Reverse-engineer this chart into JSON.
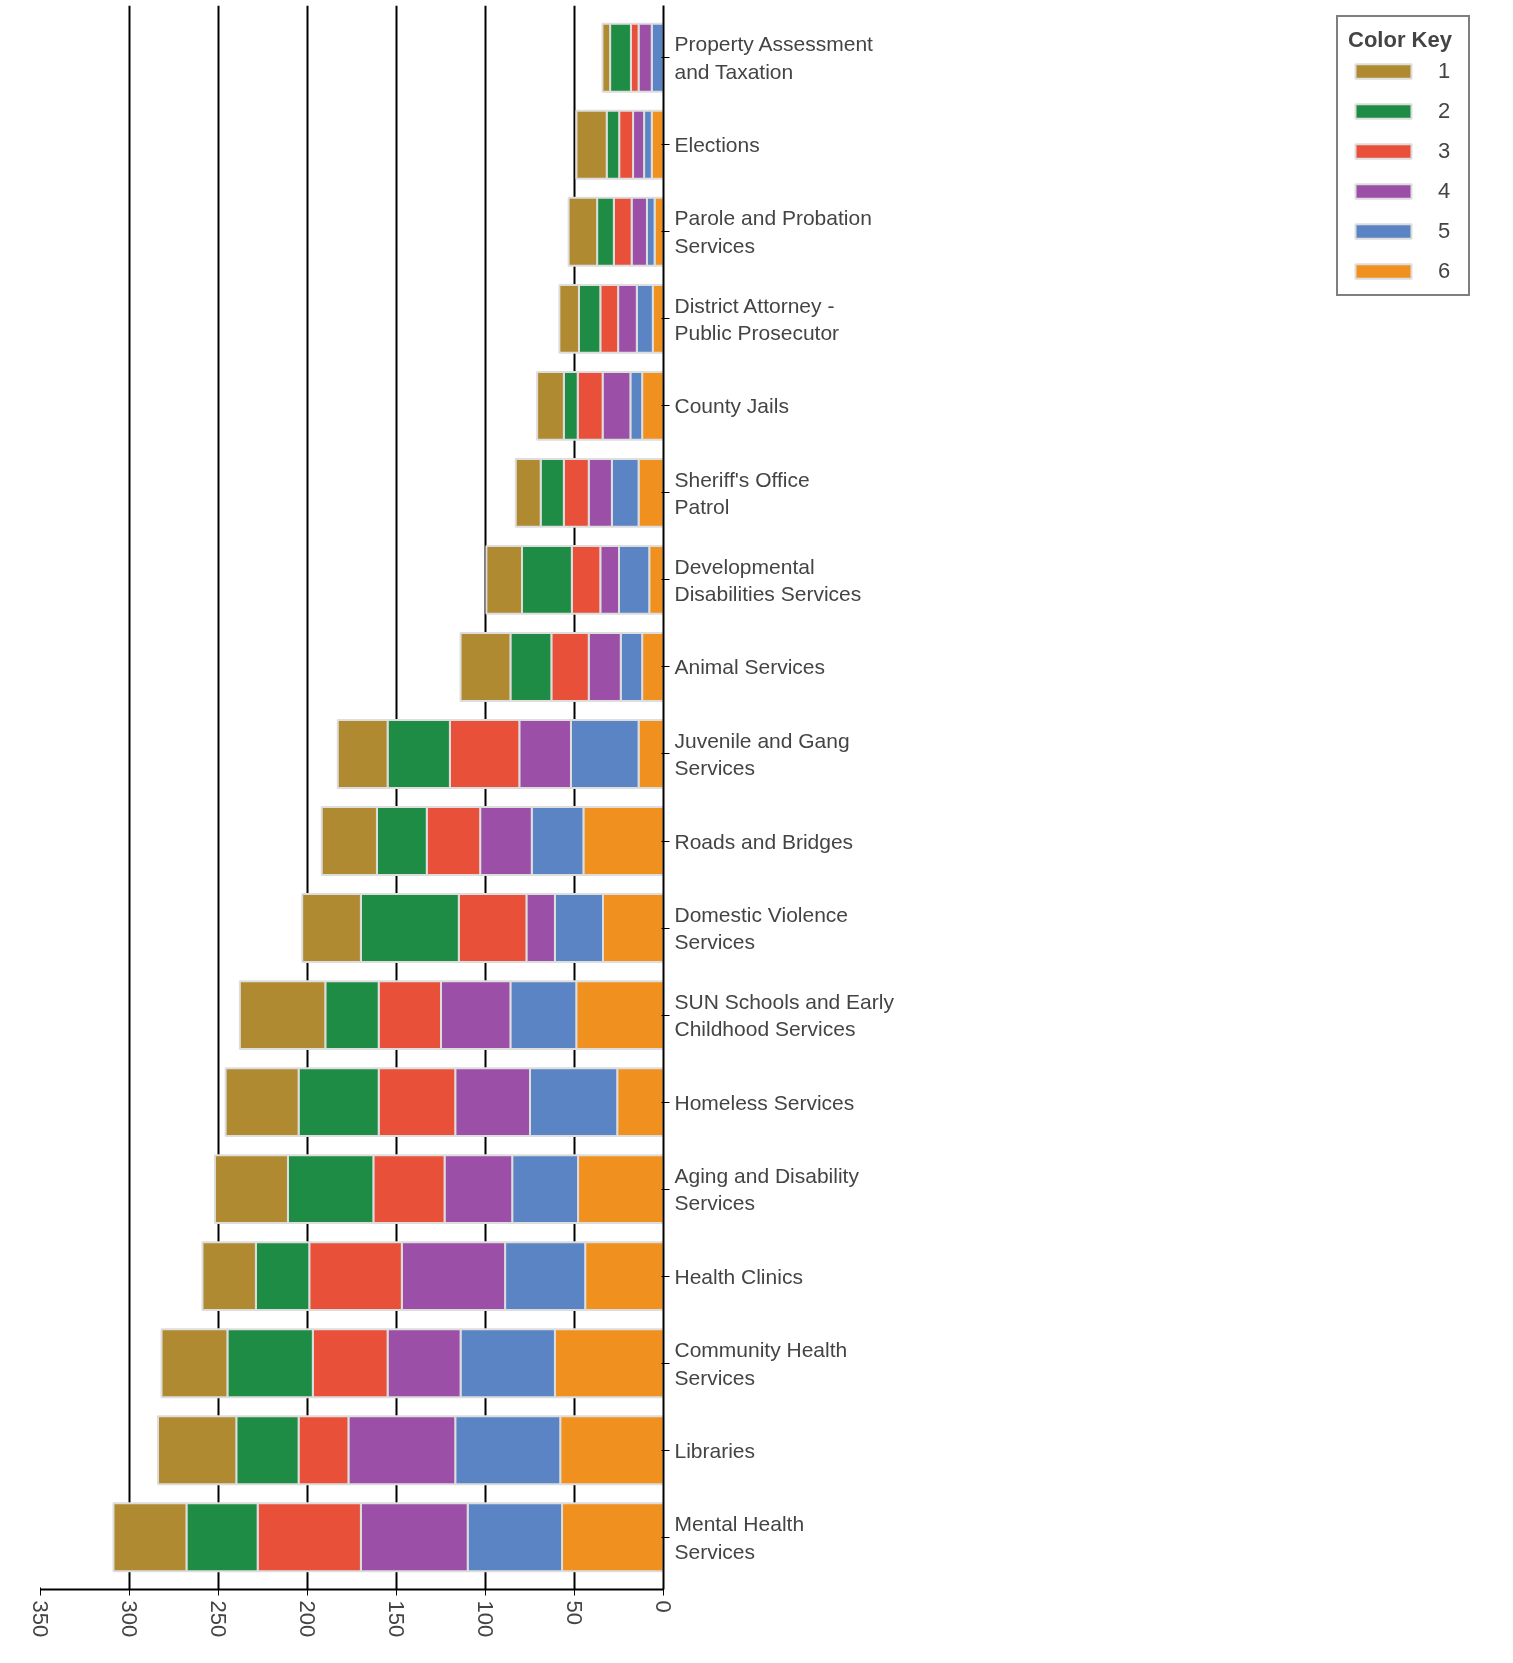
{
  "chart_data": {
    "type": "bar",
    "orientation": "horizontal",
    "stacked": true,
    "categories": [
      "Property Assessment and Taxation",
      "Elections",
      "Parole and Probation Services",
      "District Attorney - Public Prosecutor",
      "County Jails",
      "Sheriff's Office Patrol",
      "Developmental Disabilities Services",
      "Animal Services",
      "Juvenile and Gang Services",
      "Roads and Bridges",
      "Domestic Violence Services",
      "SUN Schools and Early Childhood Services",
      "Homeless Services",
      "Aging and Disability Services",
      "Health Clinics",
      "Community Health Services",
      "Libraries",
      "Mental Health Services"
    ],
    "series": [
      {
        "name": "6",
        "color": "#f0901e",
        "values": [
          null,
          6.6,
          5,
          6,
          12,
          14,
          8,
          12,
          14,
          45,
          34,
          49,
          26,
          48,
          44,
          61,
          58,
          57
        ]
      },
      {
        "name": "5",
        "color": "#5b84c4",
        "values": [
          6.6,
          4.3,
          4.3,
          9,
          6.6,
          15,
          17,
          12,
          38,
          29,
          27,
          37,
          49,
          37,
          45,
          53,
          59,
          53
        ]
      },
      {
        "name": "4",
        "color": "#9b4fa6",
        "values": [
          7.4,
          6.2,
          8.6,
          10.5,
          15.6,
          13,
          10.5,
          18,
          29,
          29,
          16,
          39,
          42,
          38,
          58,
          41,
          60,
          60
        ]
      },
      {
        "name": "3",
        "color": "#e8503a",
        "values": [
          4.3,
          7.8,
          10,
          10,
          14,
          14,
          16,
          21,
          39,
          30,
          38,
          35,
          43,
          40,
          52,
          42,
          28,
          58
        ]
      },
      {
        "name": "2",
        "color": "#1e8c45",
        "values": [
          11.7,
          7,
          9.4,
          12,
          7.8,
          13,
          28,
          23,
          35,
          28,
          55,
          30,
          45,
          48,
          30,
          48,
          35,
          40
        ]
      },
      {
        "name": "1",
        "color": "#b08a30",
        "values": [
          4.3,
          17,
          16,
          11,
          15,
          14,
          20,
          28,
          28,
          31,
          33,
          48,
          41,
          41,
          30,
          37,
          44,
          41
        ]
      }
    ],
    "xlim": [
      350,
      0
    ],
    "xticks": [
      350,
      300,
      250,
      200,
      150,
      100,
      50,
      0
    ],
    "grid": "x",
    "legend": "right",
    "legend_title": "Color Key"
  }
}
